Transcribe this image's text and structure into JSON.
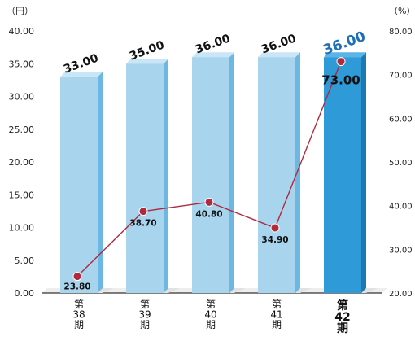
{
  "chart_data": {
    "type": "bar",
    "y_unit_left": "（円）",
    "y_unit_right": "（%）",
    "ylim_left": [
      0,
      40
    ],
    "ylim_right": [
      20,
      80
    ],
    "left_ticks": [
      "0.00",
      "5.00",
      "10.00",
      "15.00",
      "20.00",
      "25.00",
      "30.00",
      "35.00",
      "40.00"
    ],
    "right_ticks": [
      "20.00",
      "30.00",
      "40.00",
      "50.00",
      "60.00",
      "70.00",
      "80.00"
    ],
    "categories": [
      {
        "prefix": "第",
        "num": "38",
        "suffix": "期"
      },
      {
        "prefix": "第",
        "num": "39",
        "suffix": "期"
      },
      {
        "prefix": "第",
        "num": "40",
        "suffix": "期"
      },
      {
        "prefix": "第",
        "num": "41",
        "suffix": "期"
      },
      {
        "prefix": "第",
        "num": "42",
        "suffix": "期"
      }
    ],
    "highlight_index": 4,
    "series": [
      {
        "type": "bar",
        "axis": "left",
        "values": [
          33.0,
          35.0,
          36.0,
          36.0,
          36.0
        ],
        "labels": [
          "33.00",
          "35.00",
          "36.00",
          "36.00",
          "36.00"
        ]
      },
      {
        "type": "line",
        "axis": "right",
        "values": [
          23.8,
          38.7,
          40.8,
          34.9,
          73.0
        ],
        "labels": [
          "23.80",
          "38.70",
          "40.80",
          "34.90",
          "73.00"
        ]
      }
    ],
    "colors": {
      "bar": "#a8d4ee",
      "bar_side": "#6db8e2",
      "bar_top": "#c9e6f6",
      "bar_hl": "#2e9ad8",
      "bar_hl_side": "#1c79b4",
      "bar_hl_top": "#5ab4e8",
      "label_hl": "#1f6fb5",
      "line": "#b02a3e",
      "point": "#b02a3e"
    }
  }
}
